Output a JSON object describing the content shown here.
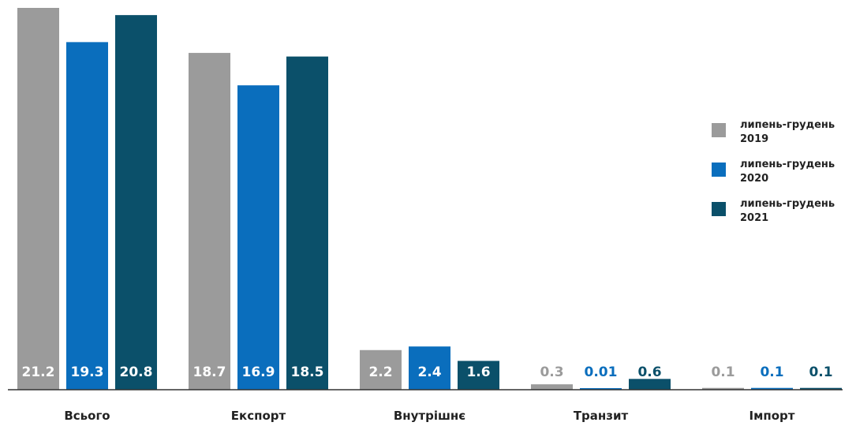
{
  "chart_data": {
    "type": "bar",
    "categories": [
      "Всього",
      "Експорт",
      "Внутрішнє",
      "Транзит",
      "Імпорт"
    ],
    "series": [
      {
        "name": "липень-грудень 2019",
        "legend_lines": [
          "липень-грудень",
          "2019"
        ],
        "color": "#9b9b9b",
        "values": [
          21.2,
          18.7,
          2.2,
          0.3,
          0.1
        ],
        "labels": [
          "21.2",
          "18.7",
          "2.2",
          "0.3",
          "0.1"
        ]
      },
      {
        "name": "липень-грудень 2020",
        "legend_lines": [
          "липень-грудень",
          "2020"
        ],
        "color": "#0a6ebd",
        "values": [
          19.3,
          16.9,
          2.4,
          0.01,
          0.1
        ],
        "labels": [
          "19.3",
          "16.9",
          "2.4",
          "0.01",
          "0.1"
        ]
      },
      {
        "name": "липень-грудень 2021",
        "legend_lines": [
          "липень-грудень",
          "2021"
        ],
        "color": "#0b506a",
        "values": [
          20.8,
          18.5,
          1.6,
          0.6,
          0.1
        ],
        "labels": [
          "20.8",
          "18.5",
          "1.6",
          "0.6",
          "0.1"
        ]
      }
    ],
    "ylim": [
      0,
      21.2
    ],
    "grid": false,
    "legend_position": "right"
  }
}
